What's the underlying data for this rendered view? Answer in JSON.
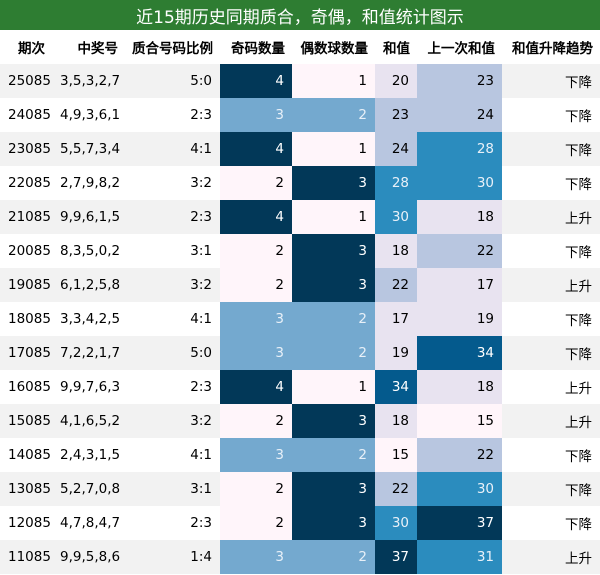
{
  "title": "近15期历史同期质合，奇偶，和值统计图示",
  "chart_data": {
    "type": "table",
    "title": "近15期历史同期质合，奇偶，和值统计图示",
    "columns": [
      "期次",
      "中奖号",
      "质合号码比例",
      "奇码数量",
      "偶数球数量",
      "和值",
      "上一次和值",
      "和值升降趋势"
    ],
    "rows": [
      [
        "25085",
        "3,5,3,2,7",
        "5:0",
        4,
        1,
        20,
        23,
        "下降"
      ],
      [
        "24085",
        "4,9,3,6,1",
        "2:3",
        3,
        2,
        23,
        24,
        "下降"
      ],
      [
        "23085",
        "5,5,7,3,4",
        "4:1",
        4,
        1,
        24,
        28,
        "下降"
      ],
      [
        "22085",
        "2,7,9,8,2",
        "3:2",
        2,
        3,
        28,
        30,
        "下降"
      ],
      [
        "21085",
        "9,9,6,1,5",
        "2:3",
        4,
        1,
        30,
        18,
        "上升"
      ],
      [
        "20085",
        "8,3,5,0,2",
        "3:1",
        2,
        3,
        18,
        22,
        "下降"
      ],
      [
        "19085",
        "6,1,2,5,8",
        "3:2",
        2,
        3,
        22,
        17,
        "上升"
      ],
      [
        "18085",
        "3,3,4,2,5",
        "4:1",
        3,
        2,
        17,
        19,
        "下降"
      ],
      [
        "17085",
        "7,2,2,1,7",
        "5:0",
        3,
        2,
        19,
        34,
        "下降"
      ],
      [
        "16085",
        "9,9,7,6,3",
        "2:3",
        4,
        1,
        34,
        18,
        "上升"
      ],
      [
        "15085",
        "4,1,6,5,2",
        "3:2",
        2,
        3,
        18,
        15,
        "上升"
      ],
      [
        "14085",
        "2,4,3,1,5",
        "4:1",
        3,
        2,
        15,
        22,
        "下降"
      ],
      [
        "13085",
        "5,2,7,0,8",
        "3:1",
        2,
        3,
        22,
        30,
        "下降"
      ],
      [
        "12085",
        "4,7,8,4,7",
        "2:3",
        2,
        3,
        30,
        37,
        "下降"
      ],
      [
        "11085",
        "9,9,5,8,6",
        "1:4",
        3,
        2,
        37,
        31,
        "上升"
      ]
    ],
    "heatmap_columns": [
      3,
      4,
      5,
      6
    ],
    "colors": {
      "header_bg": "#2e7d32",
      "header_text": "#ffffff",
      "row_alt_bg": "#f2f2f2",
      "scale": [
        "#fff5fa",
        "#e8e3f0",
        "#b8c6e0",
        "#74a9cf",
        "#2b8cbe",
        "#045a8d",
        "#023858"
      ]
    }
  }
}
